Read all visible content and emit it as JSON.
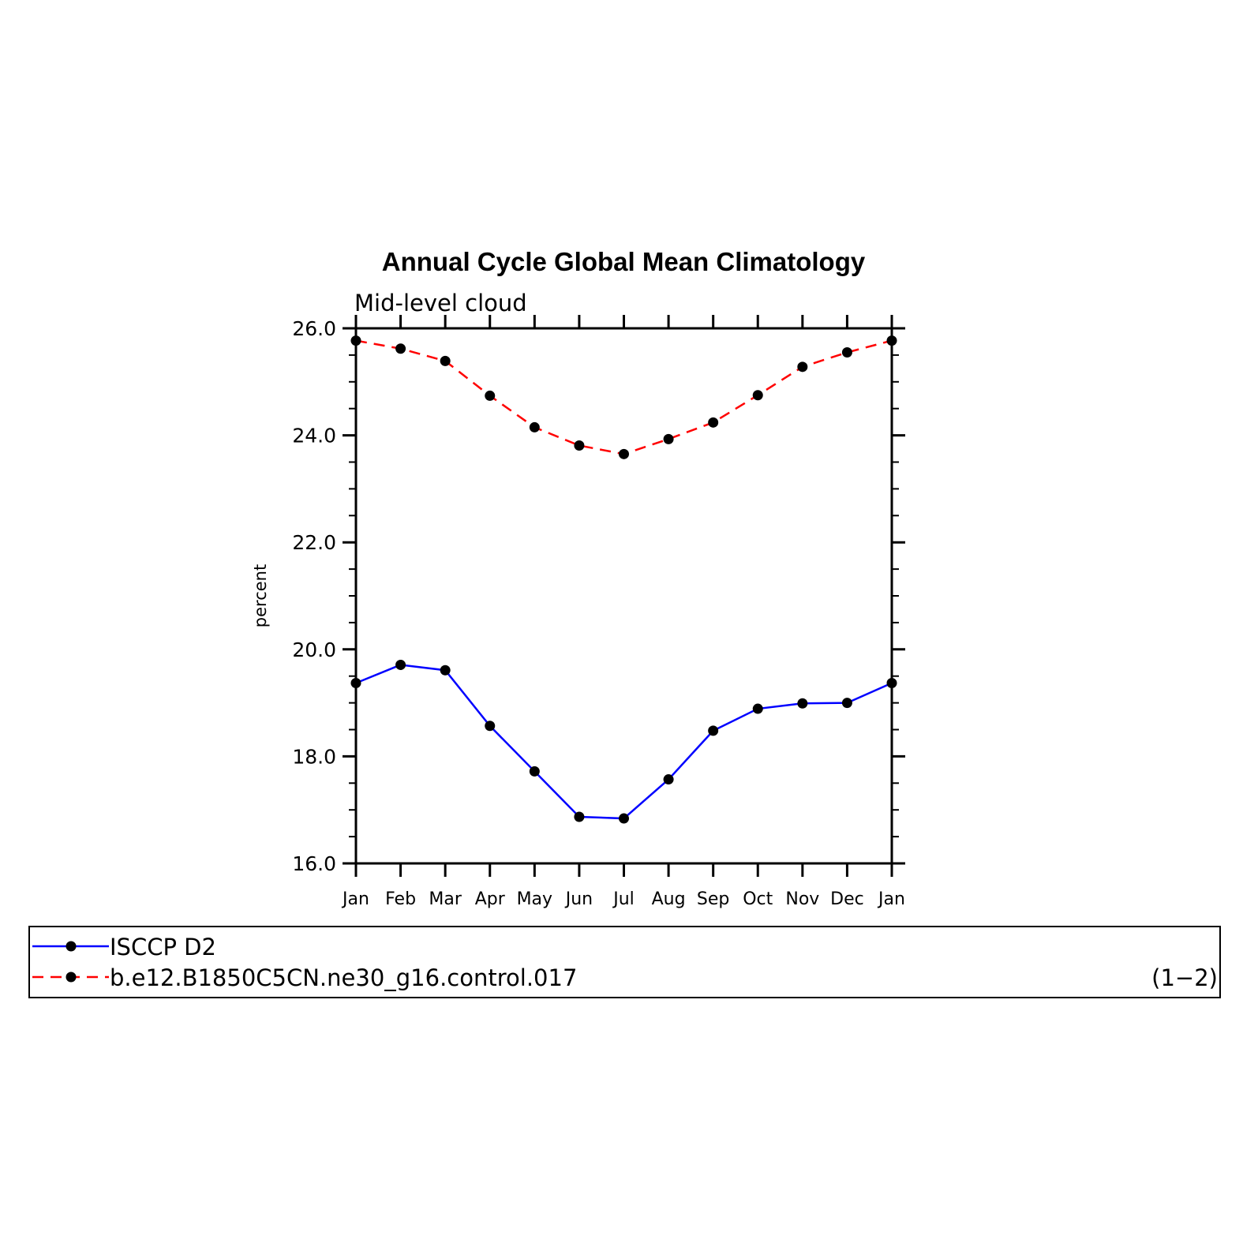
{
  "chart_data": {
    "type": "line",
    "title": "Annual Cycle Global Mean Climatology",
    "subtitle": "Mid-level cloud",
    "ylabel": "percent",
    "xlabel": "",
    "categories": [
      "Jan",
      "Feb",
      "Mar",
      "Apr",
      "May",
      "Jun",
      "Jul",
      "Aug",
      "Sep",
      "Oct",
      "Nov",
      "Dec",
      "Jan"
    ],
    "ylim": [
      16.0,
      26.0
    ],
    "yticks": [
      "16.0",
      "18.0",
      "20.0",
      "22.0",
      "24.0",
      "26.0"
    ],
    "series": [
      {
        "name": "ISCCP D2",
        "color": "#0000ff",
        "dash": "solid",
        "values": [
          19.37,
          19.71,
          19.61,
          18.57,
          17.72,
          16.87,
          16.84,
          17.57,
          18.48,
          18.89,
          18.99,
          19.0,
          19.37
        ]
      },
      {
        "name": "b.e12.B1850C5CN.ne30_g16.control.017",
        "color": "#ff0000",
        "dash": "dashed",
        "values": [
          25.77,
          25.62,
          25.39,
          24.74,
          24.15,
          23.81,
          23.65,
          23.93,
          24.24,
          24.75,
          25.28,
          25.55,
          25.77
        ]
      }
    ],
    "legend_position": "bottom",
    "legend_tag": "(1−2)",
    "grid": false
  }
}
